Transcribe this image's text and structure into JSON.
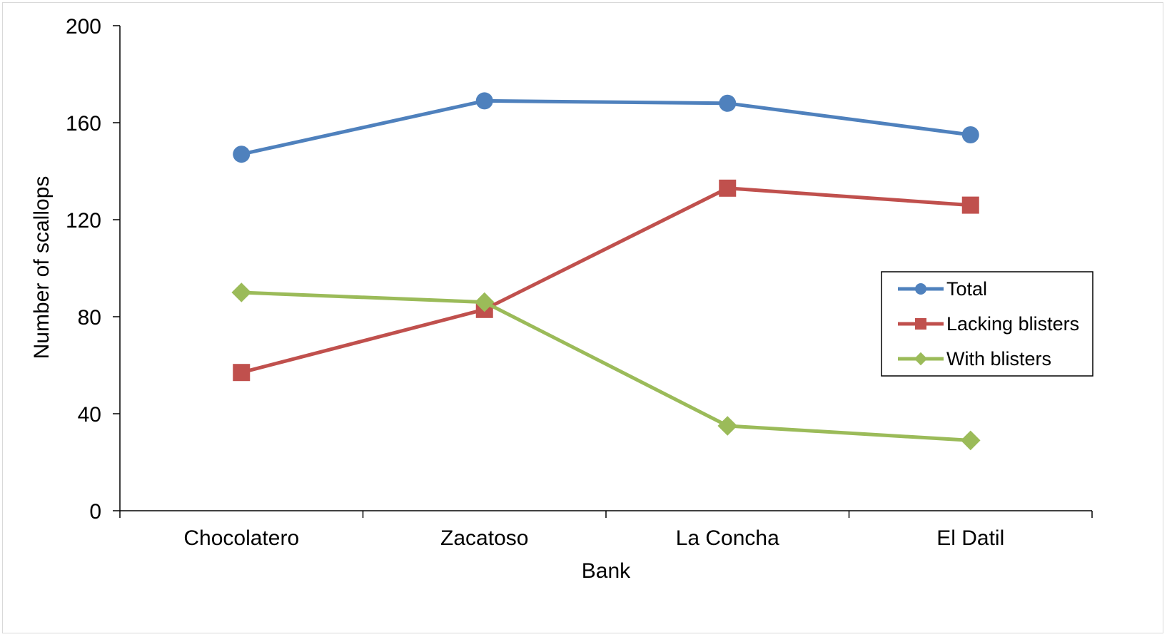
{
  "chart_data": {
    "type": "line",
    "categories": [
      "Chocolatero",
      "Zacatoso",
      "La Concha",
      "El Datil"
    ],
    "series": [
      {
        "name": "Total",
        "values": [
          147,
          169,
          168,
          155
        ],
        "color": "#4f81bd",
        "marker": "circle"
      },
      {
        "name": "Lacking blisters",
        "values": [
          57,
          83,
          133,
          126
        ],
        "color": "#c0504d",
        "marker": "square"
      },
      {
        "name": "With blisters",
        "values": [
          90,
          86,
          35,
          29
        ],
        "color": "#9bbb59",
        "marker": "diamond"
      }
    ],
    "xlabel": "Bank",
    "ylabel": "Number of scallops",
    "ylim": [
      0,
      200
    ],
    "yticks": [
      "0",
      "40",
      "80",
      "120",
      "160",
      "200"
    ],
    "grid": false,
    "legend_position": "right"
  }
}
